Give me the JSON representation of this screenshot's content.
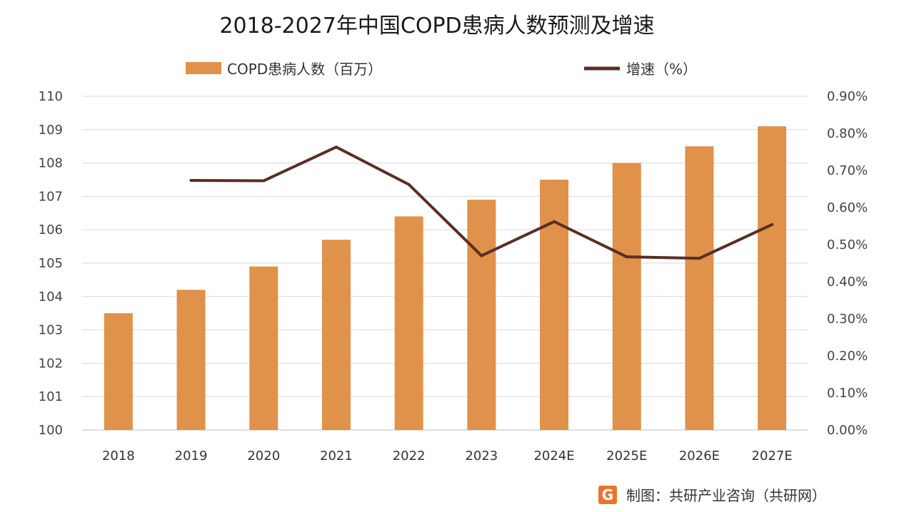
{
  "chart_data": {
    "type": "bar",
    "title": "2018-2027年中国COPD患病人数预测及增速",
    "categories": [
      "2018",
      "2019",
      "2020",
      "2021",
      "2022",
      "2023",
      "2024E",
      "2025E",
      "2026E",
      "2027E"
    ],
    "series": [
      {
        "name": "COPD患病人数（百万）",
        "type": "bar",
        "axis": "left",
        "color": "#E0914A",
        "values": [
          103.5,
          104.2,
          104.9,
          105.7,
          106.4,
          106.9,
          107.5,
          108.0,
          108.5,
          109.1
        ]
      },
      {
        "name": "增速（%）",
        "type": "line",
        "axis": "right",
        "color": "#5A2E24",
        "values": [
          null,
          0.673,
          0.672,
          0.763,
          0.662,
          0.47,
          0.562,
          0.467,
          0.463,
          0.554
        ]
      }
    ],
    "ylim_left": [
      100,
      110
    ],
    "yticks_left": [
      "100",
      "101",
      "102",
      "103",
      "104",
      "105",
      "106",
      "107",
      "108",
      "109",
      "110"
    ],
    "ylim_right": [
      0,
      0.9
    ],
    "yticks_right": [
      "0.00%",
      "0.10%",
      "0.20%",
      "0.30%",
      "0.40%",
      "0.50%",
      "0.60%",
      "0.70%",
      "0.80%",
      "0.90%"
    ],
    "grid": true,
    "legend_position": "top"
  },
  "footer": {
    "logo_letter": "G",
    "credit": "制图：共研产业咨询（共研网）",
    "logo_color": "#E8762A"
  }
}
